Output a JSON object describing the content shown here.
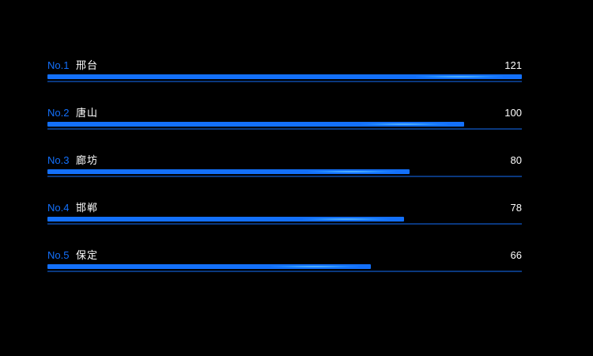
{
  "page": {
    "background": "#000000"
  },
  "chart_data": {
    "type": "bar",
    "subtype": "ranking-board",
    "orientation": "horizontal",
    "title": "",
    "legend": null,
    "grid": false,
    "value_range": {
      "min": 66,
      "max": 121
    },
    "items": [
      {
        "rank": "No.1",
        "name": "邢台",
        "value": 121,
        "bar_percent": 100
      },
      {
        "rank": "No.2",
        "name": "唐山",
        "value": 100,
        "bar_percent": 87.8
      },
      {
        "rank": "No.3",
        "name": "廊坊",
        "value": 80,
        "bar_percent": 76.3
      },
      {
        "rank": "No.4",
        "name": "邯郸",
        "value": 78,
        "bar_percent": 75.2
      },
      {
        "rank": "No.5",
        "name": "保定",
        "value": 66,
        "bar_percent": 68.2
      }
    ],
    "colors": {
      "background": "#000000",
      "rank_label": "#1370fb",
      "bar": "#1370fb",
      "track": "rgba(19,112,251,0.5)",
      "shine": "#28f8ff",
      "text": "#ffffff"
    }
  }
}
